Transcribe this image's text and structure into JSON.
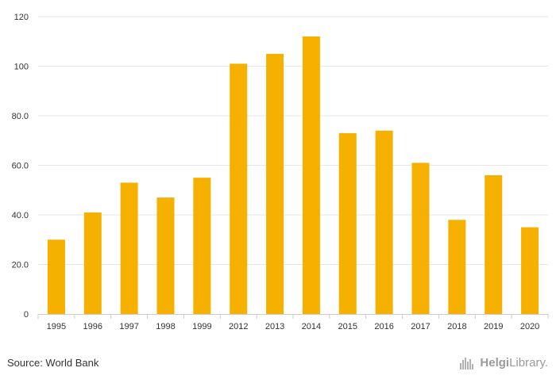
{
  "chart_data": {
    "type": "bar",
    "categories": [
      "1995",
      "1996",
      "1997",
      "1998",
      "1999",
      "2012",
      "2013",
      "2014",
      "2015",
      "2016",
      "2017",
      "2018",
      "2019",
      "2020"
    ],
    "values": [
      30,
      41,
      53,
      47,
      55,
      101,
      105,
      112,
      73,
      74,
      61,
      38,
      56,
      35
    ],
    "ylim": [
      0,
      120
    ],
    "yticks": [
      0,
      20,
      40,
      60,
      80,
      100,
      120
    ],
    "ytick_labels": [
      "0",
      "20.0",
      "40.0",
      "60.0",
      "80.0",
      "100",
      "120"
    ],
    "grid": true,
    "bar_color": "#F5B000",
    "title": "",
    "xlabel": "",
    "ylabel": ""
  },
  "footer": {
    "source": "Source: World Bank",
    "brand_name": "Helgi",
    "brand_suffix": "Library."
  }
}
